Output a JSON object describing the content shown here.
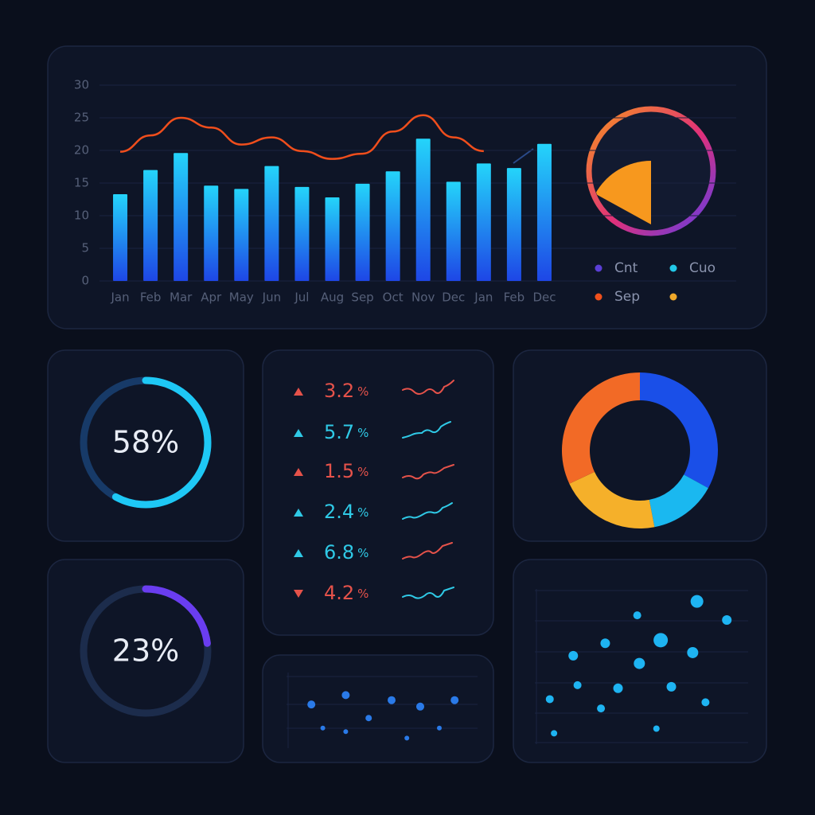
{
  "chart_data": [
    {
      "type": "bar",
      "categories": [
        "Jan",
        "Feb",
        "Mar",
        "Apr",
        "May",
        "Jun",
        "Jul",
        "Aug",
        "Sep",
        "Oct",
        "Nov",
        "Dec",
        "Jan",
        "Feb",
        "Dec"
      ],
      "series": [
        {
          "type": "bar",
          "colors": [
            "#24d4fa",
            "#1e46e6"
          ],
          "values": [
            13.3,
            17,
            19.6,
            14.6,
            14.1,
            17.6,
            14.4,
            12.8,
            14.9,
            16.8,
            21.8,
            15.2,
            18,
            17.3,
            21
          ]
        },
        {
          "type": "line",
          "color": "#f04e1c",
          "values": [
            19.8,
            22.3,
            25,
            23.5,
            20.9,
            22,
            19.9,
            18.7,
            19.5,
            22.9,
            25.4,
            22,
            19.9,
            null,
            null
          ]
        }
      ],
      "ylim": [
        0,
        30
      ],
      "yticks": [
        0,
        5,
        10,
        15,
        20,
        25,
        30
      ],
      "grid": true
    },
    {
      "type": "gauge",
      "values": [
        17
      ],
      "color": "#f7981e",
      "legend": [
        {
          "name": "Cnt",
          "color": "#5b3fd6"
        },
        {
          "name": "Cuo",
          "color": "#22c8e8"
        },
        {
          "name": "Sep",
          "color": "#f0501c"
        },
        {
          "name": null,
          "color": "#f0a82a"
        }
      ]
    },
    {
      "type": "radial",
      "values": [
        58
      ],
      "value_labels": [
        "58%"
      ],
      "color": "#1ec8f5",
      "track_color": "#173a68"
    },
    {
      "type": "radial",
      "values": [
        23
      ],
      "value_labels": [
        "23%"
      ],
      "color": "#6a3df0",
      "track_color": "#1c2c4c"
    },
    {
      "type": "donut",
      "values": [
        33,
        14,
        21,
        32
      ],
      "colors": [
        "#1a4fe8",
        "#1ab8f0",
        "#f5b02a",
        "#f26a26"
      ]
    },
    {
      "type": "scatter",
      "x": [
        76,
        48,
        90,
        33,
        59,
        18,
        74,
        49,
        20,
        39,
        64,
        7,
        31,
        80,
        9,
        57
      ],
      "values": [
        92,
        83,
        80,
        65,
        67,
        57,
        59,
        52,
        38,
        36,
        37,
        29,
        23,
        27,
        7,
        10
      ],
      "sizes": [
        8,
        5,
        6,
        6,
        9,
        6,
        7,
        7,
        5,
        6,
        6,
        5,
        5,
        5,
        4,
        4
      ],
      "color": "#1eb4f2",
      "xlim": [
        0,
        100
      ],
      "ylim": [
        0,
        100
      ]
    },
    {
      "type": "scatter",
      "x": [
        13,
        31,
        55,
        70,
        88,
        43,
        19,
        31,
        80,
        63
      ],
      "values": [
        61,
        74,
        67,
        58,
        67,
        42,
        28,
        23,
        28,
        14
      ],
      "sizes": [
        5,
        5,
        5,
        5,
        5,
        4,
        3,
        3,
        3,
        3
      ],
      "color": "#2a7ae8",
      "xlim": [
        0,
        100
      ],
      "ylim": [
        0,
        100
      ]
    }
  ],
  "kpis": {
    "values": [
      3.2,
      5.7,
      1.5,
      2.4,
      6.8,
      4.2
    ],
    "units": [
      "%",
      "%",
      "%",
      "%",
      "%",
      "%"
    ],
    "trends": [
      "up",
      "up",
      "up",
      "up",
      "up",
      "down"
    ],
    "colors": [
      "#e5524a",
      "#2fc9e6",
      "#e5524a",
      "#2fc9e6",
      "#2fc9e6",
      "#e5524a"
    ]
  }
}
